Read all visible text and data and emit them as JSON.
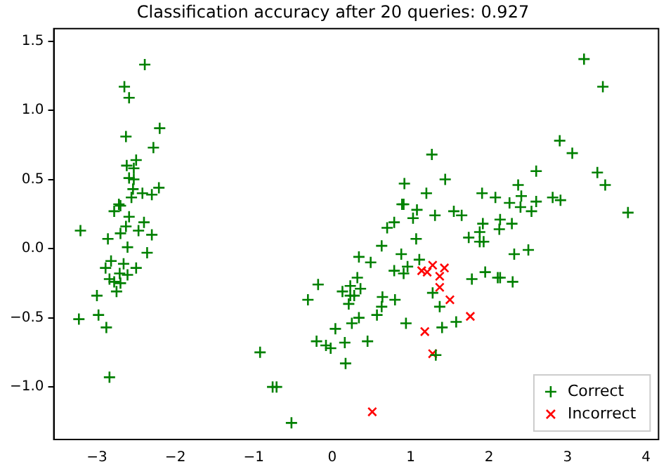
{
  "chart_data": {
    "type": "scatter",
    "title": "Classification accuracy after 20 queries: 0.927",
    "xlim": [
      -3.55,
      4.16
    ],
    "ylim": [
      -1.38,
      1.59
    ],
    "xticks": [
      -3,
      -2,
      -1,
      0,
      1,
      2,
      3,
      4
    ],
    "yticks": [
      {
        "value": -1,
        "label": "−1.0"
      },
      -0.5,
      {
        "value": 0,
        "label": "0.0"
      },
      0.5,
      {
        "value": 1,
        "label": "1.0"
      },
      1.5
    ],
    "grid": false,
    "legend": "bottom right",
    "series": [
      {
        "name": "Correct",
        "color": "#008000",
        "marker": "cross",
        "x": [
          -2.39,
          -2.65,
          -2.59,
          -2.2,
          -2.63,
          -2.28,
          -2.5,
          -2.62,
          -2.53,
          -2.59,
          -2.53,
          -2.54,
          -2.21,
          -2.42,
          -2.3,
          -2.56,
          -2.72,
          -2.7,
          -2.78,
          -2.59,
          -2.4,
          -2.63,
          -3.21,
          -2.47,
          -2.7,
          -2.3,
          -2.86,
          -2.61,
          -2.36,
          -2.82,
          -2.66,
          -2.89,
          -2.5,
          -2.71,
          -2.61,
          -2.84,
          -2.78,
          -2.7,
          -2.75,
          -3.0,
          -2.98,
          -3.23,
          -2.88,
          -2.84,
          -0.18,
          -0.31,
          -0.92,
          -0.76,
          -0.71,
          -0.2,
          -0.52,
          2.9,
          3.06,
          1.27,
          2.6,
          3.38,
          3.48,
          0.92,
          1.44,
          2.37,
          1.2,
          1.91,
          2.41,
          2.08,
          2.81,
          2.91,
          2.6,
          0.89,
          0.91,
          2.26,
          2.4,
          1.08,
          2.54,
          1.55,
          1.65,
          1.31,
          1.03,
          2.14,
          3.77,
          0.79,
          1.92,
          2.29,
          0.7,
          2.13,
          1.88,
          1.74,
          1.07,
          1.88,
          1.93,
          0.63,
          2.5,
          2.32,
          0.88,
          0.34,
          0.49,
          1.11,
          0.96,
          0.79,
          0.91,
          1.95,
          2.11,
          2.14,
          1.78,
          2.3,
          0.32,
          0.23,
          0.36,
          0.13,
          0.23,
          0.28,
          1.28,
          0.64,
          0.8,
          0.21,
          0.63,
          1.37,
          0.57,
          0.34,
          1.58,
          0.94,
          0.25,
          1.4,
          0.04,
          0.16,
          0.45,
          -0.08,
          -0.02,
          0.17,
          1.32,
          3.21,
          3.45
        ],
        "values": [
          1.33,
          1.17,
          1.09,
          0.87,
          0.81,
          0.73,
          0.64,
          0.6,
          0.58,
          0.51,
          0.5,
          0.43,
          0.44,
          0.4,
          0.39,
          0.37,
          0.32,
          0.31,
          0.27,
          0.23,
          0.19,
          0.16,
          0.13,
          0.13,
          0.11,
          0.1,
          0.07,
          0.01,
          -0.03,
          -0.09,
          -0.11,
          -0.14,
          -0.14,
          -0.18,
          -0.19,
          -0.22,
          -0.24,
          -0.25,
          -0.31,
          -0.34,
          -0.48,
          -0.51,
          -0.57,
          -0.93,
          -0.26,
          -0.37,
          -0.75,
          -1.0,
          -1.0,
          -0.67,
          -1.26,
          0.78,
          0.69,
          0.68,
          0.56,
          0.55,
          0.46,
          0.47,
          0.5,
          0.46,
          0.4,
          0.4,
          0.38,
          0.37,
          0.37,
          0.35,
          0.34,
          0.32,
          0.32,
          0.33,
          0.3,
          0.28,
          0.27,
          0.27,
          0.24,
          0.24,
          0.22,
          0.21,
          0.26,
          0.19,
          0.18,
          0.18,
          0.15,
          0.14,
          0.12,
          0.08,
          0.07,
          0.05,
          0.05,
          0.02,
          -0.01,
          -0.04,
          -0.04,
          -0.06,
          -0.1,
          -0.08,
          -0.13,
          -0.16,
          -0.18,
          -0.17,
          -0.21,
          -0.21,
          -0.22,
          -0.24,
          -0.21,
          -0.27,
          -0.29,
          -0.31,
          -0.34,
          -0.34,
          -0.32,
          -0.35,
          -0.37,
          -0.4,
          -0.42,
          -0.42,
          -0.48,
          -0.5,
          -0.53,
          -0.54,
          -0.54,
          -0.57,
          -0.58,
          -0.68,
          -0.67,
          -0.7,
          -0.72,
          -0.83,
          -0.77,
          1.37,
          1.17
        ]
      },
      {
        "name": "Incorrect",
        "color": "#ff0000",
        "marker": "x",
        "x": [
          1.14,
          1.21,
          1.28,
          1.43,
          1.37,
          1.37,
          1.5,
          1.76,
          1.18,
          1.28,
          0.51
        ],
        "values": [
          -0.16,
          -0.17,
          -0.12,
          -0.14,
          -0.2,
          -0.28,
          -0.37,
          -0.49,
          -0.6,
          -0.76,
          -1.18
        ]
      }
    ]
  }
}
